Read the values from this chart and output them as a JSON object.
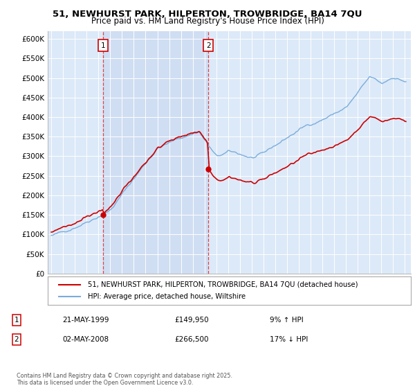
{
  "title": "51, NEWHURST PARK, HILPERTON, TROWBRIDGE, BA14 7QU",
  "subtitle": "Price paid vs. HM Land Registry's House Price Index (HPI)",
  "legend_entry1": "51, NEWHURST PARK, HILPERTON, TROWBRIDGE, BA14 7QU (detached house)",
  "legend_entry2": "HPI: Average price, detached house, Wiltshire",
  "annotation1_date": "21-MAY-1999",
  "annotation1_price": "£149,950",
  "annotation1_hpi": "9% ↑ HPI",
  "annotation2_date": "02-MAY-2008",
  "annotation2_price": "£266,500",
  "annotation2_hpi": "17% ↓ HPI",
  "footer": "Contains HM Land Registry data © Crown copyright and database right 2025.\nThis data is licensed under the Open Government Licence v3.0.",
  "sale1_x": 1999.38,
  "sale1_y": 149950,
  "sale2_x": 2008.33,
  "sale2_y": 266500,
  "plot_bg": "#dce9f8",
  "shade_color": "#c8d8f0",
  "line1_color": "#cc0000",
  "line2_color": "#7aaddb",
  "vline_color": "#dd4444",
  "annotation_box_color": "#cc0000",
  "ylim": [
    0,
    620000
  ],
  "xlim_start": 1994.7,
  "xlim_end": 2025.5
}
